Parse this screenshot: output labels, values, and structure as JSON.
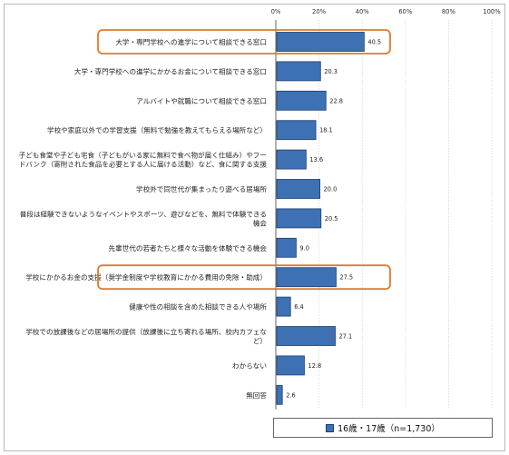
{
  "chart_data": {
    "type": "bar",
    "orientation": "horizontal",
    "xlim": [
      0,
      100
    ],
    "ticks": [
      "0%",
      "20%",
      "40%",
      "60%",
      "80%",
      "100%"
    ],
    "tick_values": [
      0,
      20,
      40,
      60,
      80,
      100
    ],
    "grid": true,
    "legend_position": "bottom",
    "bar_color": "#3d71b3",
    "highlight_color": "#e07b2c",
    "categories": [
      [
        "大学・専門学校への進学について相談できる窓口"
      ],
      [
        "大学・専門学校への進学にかかるお金について相談できる窓口"
      ],
      [
        "アルバイトや就職について相談できる窓口"
      ],
      [
        "学校や家庭以外での学習支援（無料で勉強を教えてもらえる場所など）"
      ],
      [
        "子ども食堂や子ども宅食（子どもがいる家に無料で食べ物が届く仕組み）やフー",
        "ドバンク（寄附された食品を必要とする人に届ける活動）など、食に関する支援"
      ],
      [
        "学校外で同世代が集まったり遊べる居場所"
      ],
      [
        "普段は経験できないようなイベントやスポーツ、遊びなどを、無料で体験できる",
        "機会"
      ],
      [
        "先輩世代の若者たちと様々な活動を体験できる機会"
      ],
      [
        "学校にかかるお金の支援（奨学金制度や学校教育にかかる費用の免除・助成）"
      ],
      [
        "健康や性の相談を含めた相談できる人や場所"
      ],
      [
        "学校での放課後などの居場所の提供（放課後に立ち寄れる場所、校内カフェな",
        "ど）"
      ],
      [
        "わからない"
      ],
      [
        "無回答"
      ]
    ],
    "series": [
      {
        "name": "16歳・17歳（n=1,730）",
        "values": [
          40.5,
          20.3,
          22.8,
          18.1,
          13.6,
          20.0,
          20.5,
          9.0,
          27.5,
          6.4,
          27.1,
          12.8,
          2.6
        ],
        "labels": [
          "40.5",
          "20.3",
          "22.8",
          "18.1",
          "13.6",
          "20.0",
          "20.5",
          "9.0",
          "27.5",
          "6.4",
          "27.1",
          "12.8",
          "2.6"
        ]
      }
    ],
    "highlighted": [
      0,
      8
    ]
  }
}
